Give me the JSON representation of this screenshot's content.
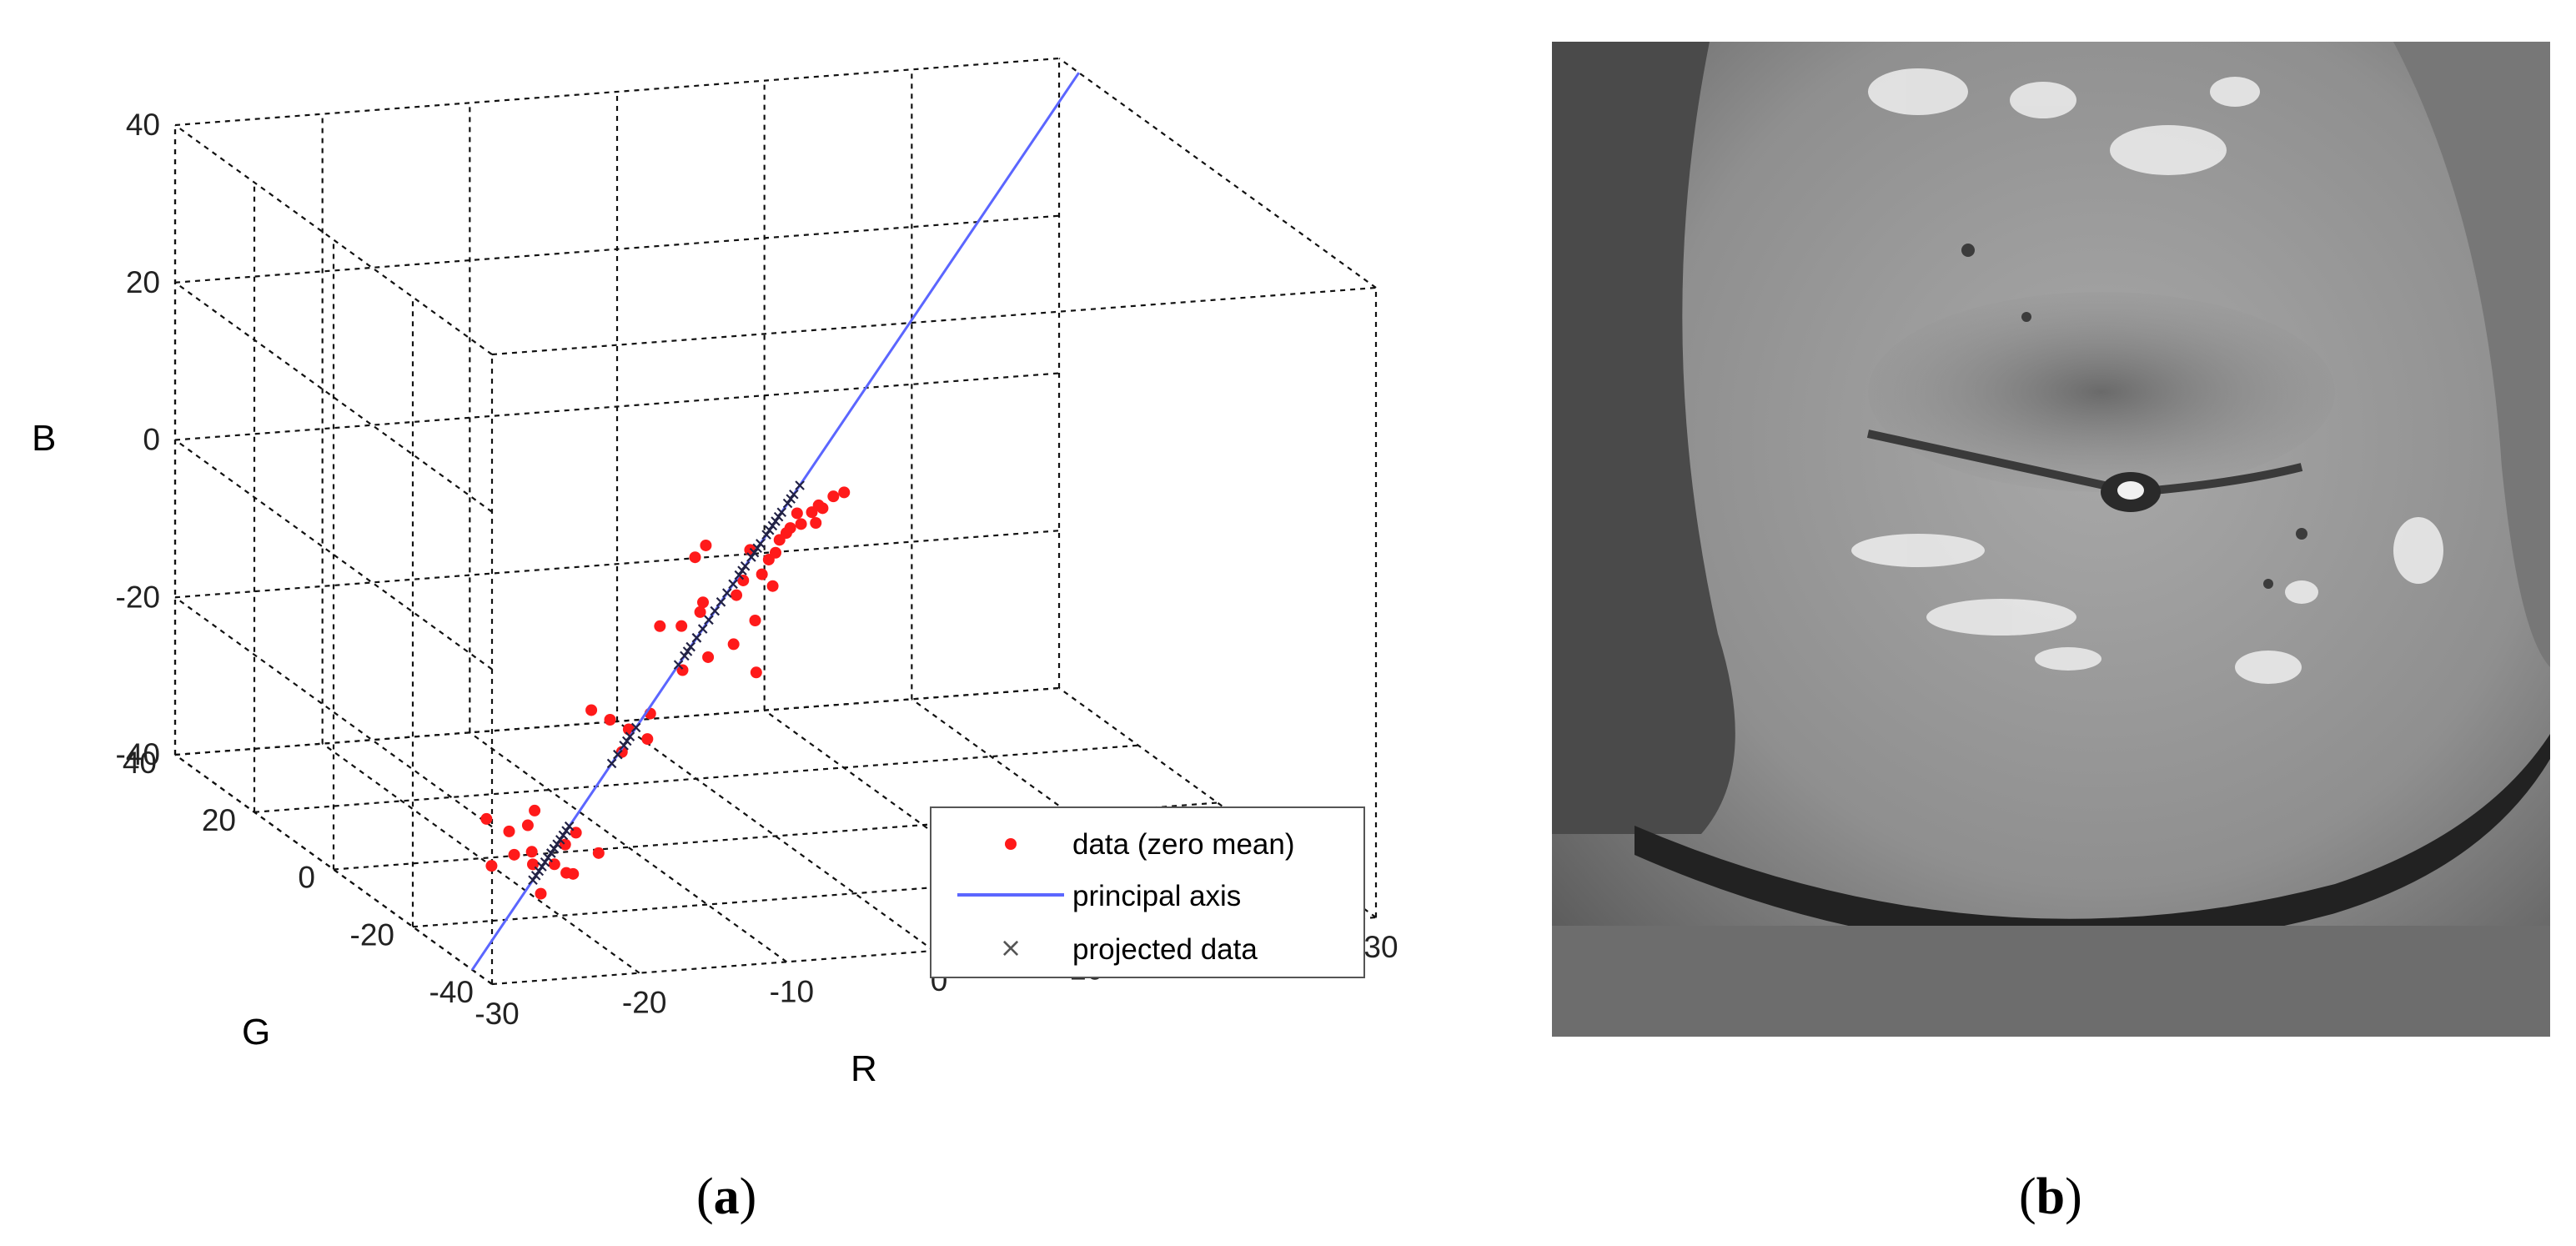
{
  "panel_a": {
    "caption_letter": "a",
    "chart_data": {
      "type": "scatter",
      "dimensions": 3,
      "xlabel": "R",
      "ylabel": "G",
      "zlabel": "B",
      "xlim": [
        -30,
        30
      ],
      "ylim": [
        -40,
        40
      ],
      "zlim": [
        -40,
        40
      ],
      "x_ticks": [
        "-30",
        "-20",
        "-10",
        "0",
        "10",
        "20",
        "30"
      ],
      "y_ticks": [
        "-40",
        "-20",
        "0",
        "20",
        "40"
      ],
      "z_ticks": [
        "-40",
        "-20",
        "0",
        "20",
        "40"
      ],
      "grid": true,
      "legend_position": "bottom-right",
      "colors": {
        "data": "#ff1a1a",
        "axis": "#5b66ff",
        "projected": "#222244"
      },
      "series": [
        {
          "name": "data (zero mean)",
          "kind": "points",
          "marker": "dot",
          "color": "#ff1a1a",
          "points": [
            [
              -24,
              -22,
              -28
            ],
            [
              -23,
              -24,
              -30
            ],
            [
              -25,
              -20,
              -27
            ],
            [
              -22,
              -26,
              -31
            ],
            [
              -21,
              -25,
              -29
            ],
            [
              -24,
              -28,
              -30
            ],
            [
              -23,
              -23,
              -27
            ],
            [
              -25,
              -27,
              -29
            ],
            [
              -22,
              -21,
              -26
            ],
            [
              -20,
              -24,
              -28
            ],
            [
              -26,
              -25,
              -31
            ],
            [
              -21,
              -27,
              -32
            ],
            [
              -19,
              -26,
              -30
            ],
            [
              -24,
              -30,
              -33
            ],
            [
              -22,
              -29,
              -31
            ],
            [
              -15,
              -14,
              -18
            ],
            [
              -14,
              -15,
              -19
            ],
            [
              -16,
              -13,
              -17
            ],
            [
              -13,
              -16,
              -20
            ],
            [
              -15,
              -17,
              -21
            ],
            [
              -12,
              -13,
              -18
            ],
            [
              -8,
              -6,
              -10
            ],
            [
              -10,
              -8,
              -9
            ],
            [
              -6,
              -4,
              -8
            ],
            [
              -9,
              -10,
              -14
            ],
            [
              -7,
              -9,
              -13
            ],
            [
              -5,
              -8,
              -12
            ],
            [
              -3,
              -6,
              -10
            ],
            [
              -4,
              -10,
              -15
            ],
            [
              -2,
              -4,
              -5
            ],
            [
              -1,
              -2,
              -4
            ],
            [
              -3,
              -3,
              -6
            ],
            [
              0,
              -1,
              -2
            ],
            [
              1,
              0,
              -1
            ],
            [
              2,
              1,
              -1
            ],
            [
              -2,
              -1,
              -3
            ],
            [
              3,
              2,
              0
            ],
            [
              1,
              1,
              -2
            ],
            [
              4,
              3,
              0
            ],
            [
              5,
              4,
              1
            ],
            [
              -6,
              -2,
              -3
            ],
            [
              -5,
              -1,
              -2
            ],
            [
              2,
              2,
              0
            ],
            [
              6,
              5,
              1
            ],
            [
              4,
              4,
              0
            ],
            [
              3,
              1,
              -1
            ],
            [
              -4,
              -5,
              -7
            ],
            [
              -1,
              -3,
              -7
            ],
            [
              0,
              0,
              -4
            ],
            [
              -7,
              -7,
              -8
            ]
          ]
        },
        {
          "name": "principal axis",
          "kind": "line",
          "color": "#5b66ff",
          "from": [
            -30,
            -35,
            -40
          ],
          "to": [
            30,
            35,
            40
          ]
        },
        {
          "name": "projected data",
          "kind": "points",
          "marker": "x",
          "color": "#222244",
          "t": [
            -0.74,
            -0.76,
            -0.72,
            -0.78,
            -0.7,
            -0.75,
            -0.73,
            -0.77,
            -0.69,
            -0.71,
            -0.8,
            -0.74,
            -0.68,
            -0.79,
            -0.73,
            -0.5,
            -0.52,
            -0.48,
            -0.54,
            -0.46,
            -0.49,
            -0.3,
            -0.28,
            -0.26,
            -0.32,
            -0.29,
            -0.24,
            -0.22,
            -0.26,
            -0.14,
            -0.1,
            -0.12,
            -0.06,
            -0.02,
            0.0,
            -0.05,
            0.02,
            -0.03,
            0.04,
            0.06,
            -0.08,
            -0.07,
            0.01,
            0.08,
            0.05,
            -0.01,
            -0.18,
            -0.16,
            -0.11,
            -0.2
          ]
        }
      ]
    }
  },
  "panel_b": {
    "caption_letter": "b"
  }
}
